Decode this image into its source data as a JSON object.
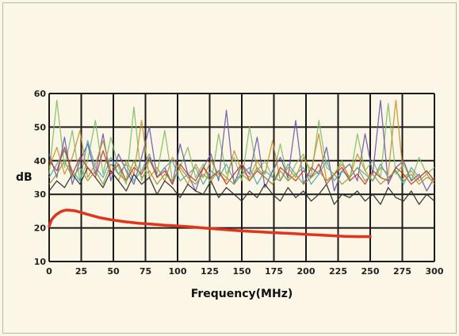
{
  "chart_data": {
    "type": "line",
    "title": "",
    "xlabel": "Frequency(MHz)",
    "ylabel": "dB",
    "xlim": [
      0,
      300
    ],
    "ylim": [
      10,
      60
    ],
    "xticks": [
      0,
      25,
      50,
      75,
      100,
      125,
      150,
      175,
      200,
      225,
      250,
      275,
      300
    ],
    "yticks": [
      10,
      20,
      30,
      40,
      50,
      60
    ],
    "grid": true,
    "legend": "none",
    "noise_color": "#555555",
    "noise_series": [
      {
        "color": "#7fbf6a",
        "x": [
          0,
          6,
          12,
          18,
          24,
          30,
          36,
          42,
          48,
          54,
          60,
          66,
          72,
          78,
          84,
          90,
          96,
          102,
          108,
          114,
          120,
          126,
          132,
          138,
          144,
          150,
          156,
          162,
          168,
          174,
          180,
          186,
          192,
          198,
          204,
          210,
          216,
          222,
          228,
          234,
          240,
          246,
          252,
          258,
          264,
          270,
          276,
          282,
          288,
          294,
          300
        ],
        "y": [
          36,
          58,
          38,
          49,
          34,
          40,
          52,
          36,
          47,
          38,
          33,
          56,
          34,
          40,
          36,
          49,
          34,
          38,
          44,
          35,
          39,
          33,
          48,
          36,
          41,
          34,
          50,
          37,
          40,
          35,
          45,
          34,
          39,
          42,
          35,
          52,
          38,
          36,
          40,
          34,
          48,
          37,
          40,
          35,
          57,
          36,
          39,
          34,
          41,
          36,
          38
        ]
      },
      {
        "color": "#6a5aa8",
        "x": [
          0,
          6,
          12,
          18,
          24,
          30,
          36,
          42,
          48,
          54,
          60,
          66,
          72,
          78,
          84,
          90,
          96,
          102,
          108,
          114,
          120,
          126,
          132,
          138,
          144,
          150,
          156,
          162,
          168,
          174,
          180,
          186,
          192,
          198,
          204,
          210,
          216,
          222,
          228,
          234,
          240,
          246,
          252,
          258,
          264,
          270,
          276,
          282,
          288,
          294,
          300
        ],
        "y": [
          42,
          35,
          47,
          33,
          40,
          45,
          36,
          48,
          34,
          42,
          37,
          33,
          41,
          50,
          35,
          38,
          33,
          45,
          36,
          31,
          38,
          42,
          34,
          55,
          33,
          39,
          36,
          47,
          32,
          37,
          41,
          35,
          52,
          33,
          38,
          36,
          44,
          31,
          37,
          39,
          34,
          48,
          36,
          58,
          33,
          38,
          40,
          34,
          36,
          31,
          35
        ]
      },
      {
        "color": "#c8912f",
        "x": [
          0,
          6,
          12,
          18,
          24,
          30,
          36,
          42,
          48,
          54,
          60,
          66,
          72,
          78,
          84,
          90,
          96,
          102,
          108,
          114,
          120,
          126,
          132,
          138,
          144,
          150,
          156,
          162,
          168,
          174,
          180,
          186,
          192,
          198,
          204,
          210,
          216,
          222,
          228,
          234,
          240,
          246,
          252,
          258,
          264,
          270,
          276,
          282,
          288,
          294,
          300
        ],
        "y": [
          38,
          44,
          36,
          41,
          49,
          35,
          39,
          46,
          37,
          34,
          40,
          36,
          52,
          35,
          38,
          34,
          41,
          37,
          33,
          39,
          35,
          40,
          36,
          34,
          43,
          37,
          35,
          40,
          36,
          46,
          34,
          38,
          35,
          41,
          37,
          48,
          34,
          36,
          39,
          35,
          42,
          37,
          34,
          38,
          36,
          58,
          35,
          37,
          34,
          36,
          33
        ]
      },
      {
        "color": "#4fa8b0",
        "x": [
          0,
          6,
          12,
          18,
          24,
          30,
          36,
          42,
          48,
          54,
          60,
          66,
          72,
          78,
          84,
          90,
          96,
          102,
          108,
          114,
          120,
          126,
          132,
          138,
          144,
          150,
          156,
          162,
          168,
          174,
          180,
          186,
          192,
          198,
          204,
          210,
          216,
          222,
          228,
          234,
          240,
          246,
          252,
          258,
          264,
          270,
          276,
          282,
          288,
          294,
          300
        ],
        "y": [
          35,
          39,
          43,
          37,
          34,
          46,
          38,
          35,
          41,
          36,
          39,
          34,
          37,
          42,
          35,
          38,
          40,
          34,
          36,
          38,
          33,
          37,
          35,
          39,
          34,
          36,
          38,
          33,
          37,
          35,
          34,
          39,
          36,
          38,
          33,
          36,
          40,
          34,
          37,
          35,
          38,
          36,
          34,
          39,
          35,
          37,
          33,
          38,
          35,
          37,
          34
        ]
      },
      {
        "color": "#2a2a2a",
        "x": [
          0,
          6,
          12,
          18,
          24,
          30,
          36,
          42,
          48,
          54,
          60,
          66,
          72,
          78,
          84,
          90,
          96,
          102,
          108,
          114,
          120,
          126,
          132,
          138,
          144,
          150,
          156,
          162,
          168,
          174,
          180,
          186,
          192,
          198,
          204,
          210,
          216,
          222,
          228,
          234,
          240,
          246,
          252,
          258,
          264,
          270,
          276,
          282,
          288,
          294,
          300
        ],
        "y": [
          31,
          34,
          32,
          36,
          33,
          38,
          35,
          32,
          37,
          34,
          31,
          36,
          33,
          35,
          30,
          34,
          32,
          29,
          33,
          31,
          30,
          34,
          29,
          32,
          30,
          28,
          31,
          29,
          33,
          30,
          28,
          32,
          29,
          31,
          28,
          30,
          33,
          27,
          30,
          29,
          31,
          28,
          30,
          27,
          32,
          29,
          28,
          31,
          27,
          30,
          28
        ]
      },
      {
        "color": "#c23a36",
        "x": [
          0,
          6,
          12,
          18,
          24,
          30,
          36,
          42,
          48,
          54,
          60,
          66,
          72,
          78,
          84,
          90,
          96,
          102,
          108,
          114,
          120,
          126,
          132,
          138,
          144,
          150,
          156,
          162,
          168,
          174,
          180,
          186,
          192,
          198,
          204,
          210,
          216,
          222,
          228,
          234,
          240,
          246,
          252,
          258,
          264,
          270,
          276,
          282,
          288,
          294,
          300
        ],
        "y": [
          40,
          37,
          44,
          36,
          41,
          38,
          35,
          43,
          36,
          39,
          34,
          38,
          36,
          41,
          35,
          37,
          33,
          39,
          36,
          34,
          38,
          35,
          37,
          33,
          36,
          39,
          34,
          37,
          35,
          33,
          38,
          36,
          34,
          37,
          35,
          39,
          33,
          36,
          38,
          34,
          36,
          33,
          37,
          35,
          34,
          38,
          36,
          33,
          35,
          37,
          34
        ]
      },
      {
        "color": "#8a9e4a",
        "x": [
          0,
          6,
          12,
          18,
          24,
          30,
          36,
          42,
          48,
          54,
          60,
          66,
          72,
          78,
          84,
          90,
          96,
          102,
          108,
          114,
          120,
          126,
          132,
          138,
          144,
          150,
          156,
          162,
          168,
          174,
          180,
          186,
          192,
          198,
          204,
          210,
          216,
          222,
          228,
          234,
          240,
          246,
          252,
          258,
          264,
          270,
          276,
          282,
          288,
          294,
          300
        ],
        "y": [
          33,
          36,
          40,
          35,
          38,
          34,
          37,
          33,
          39,
          36,
          34,
          40,
          35,
          37,
          33,
          36,
          34,
          38,
          35,
          33,
          36,
          34,
          37,
          35,
          33,
          36,
          34,
          38,
          35,
          33,
          37,
          34,
          36,
          33,
          35,
          37,
          34,
          36,
          33,
          35,
          38,
          34,
          36,
          33,
          35,
          37,
          34,
          36,
          33,
          35,
          34
        ]
      }
    ],
    "reference_series": {
      "color": "#e0341c",
      "x": [
        0,
        2,
        5,
        8,
        10,
        13,
        15,
        20,
        25,
        30,
        40,
        50,
        60,
        70,
        80,
        90,
        100,
        110,
        120,
        130,
        140,
        150,
        160,
        170,
        180,
        190,
        200,
        210,
        220,
        230,
        240,
        250
      ],
      "y": [
        20.5,
        22.5,
        23.8,
        24.6,
        25.0,
        25.3,
        25.3,
        25.1,
        24.6,
        24.0,
        23.0,
        22.3,
        21.8,
        21.4,
        21.1,
        20.8,
        20.6,
        20.3,
        20.0,
        19.7,
        19.4,
        19.1,
        18.9,
        18.7,
        18.5,
        18.3,
        18.1,
        17.9,
        17.7,
        17.5,
        17.4,
        17.4
      ]
    }
  }
}
